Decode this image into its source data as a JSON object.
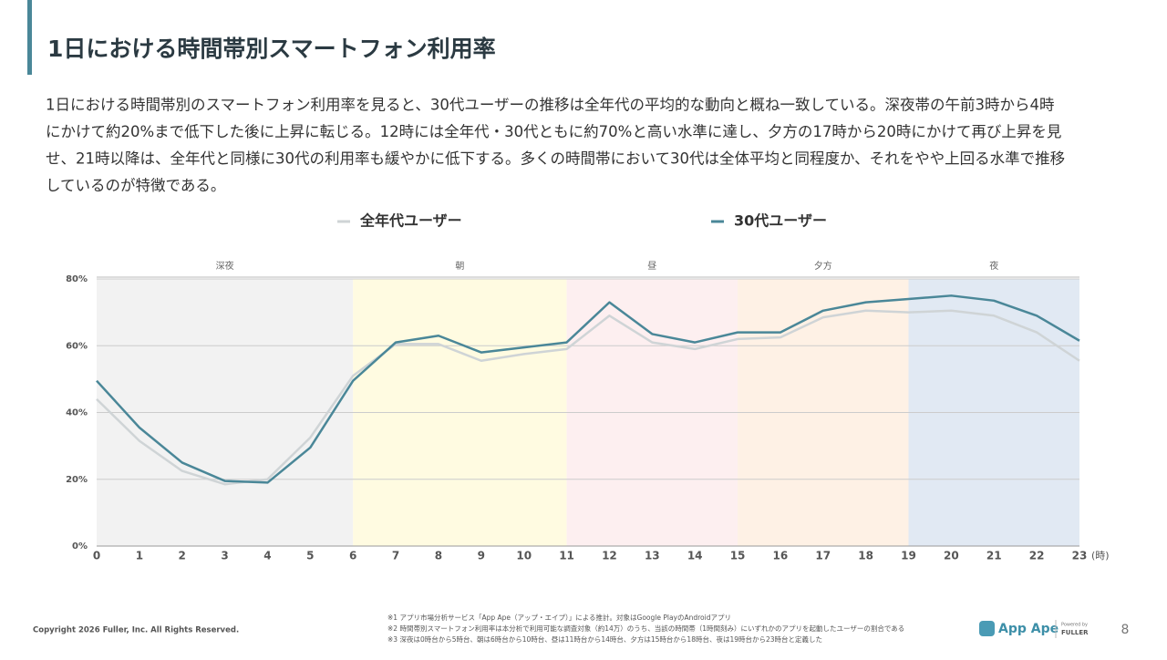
{
  "header": {
    "title": "1日における時間帯別スマートフォン利用率"
  },
  "body": {
    "paragraph": [
      "1日における時間帯別のスマートフォン利用率を見ると、30代ユーザーの推移は全年代の平均的な動向と概ね一致している。深夜帯の午前3時から4時",
      "にかけて約20%まで低下した後に上昇に転じる。12時には全年代・30代ともに約70%と高い水準に達し、夕方の17時から20時にかけて再び上昇を見",
      "せ、21時以降は、全年代と同様に30代の利用率も緩やかに低下する。多くの時間帯において30代は全体平均と同程度か、それをやや上回る水準で推移",
      "しているのが特徴である。"
    ]
  },
  "chart_data": {
    "type": "line",
    "x": [
      0,
      1,
      2,
      3,
      4,
      5,
      6,
      7,
      8,
      9,
      10,
      11,
      12,
      13,
      14,
      15,
      16,
      17,
      18,
      19,
      20,
      21,
      22,
      23
    ],
    "xlim": [
      0,
      23
    ],
    "xlabel": "(時)",
    "ylim": [
      0,
      80
    ],
    "yticks": [
      {
        "value": 0,
        "label": "0%"
      },
      {
        "value": 20,
        "label": "20%"
      },
      {
        "value": 40,
        "label": "40%"
      },
      {
        "value": 60,
        "label": "60%"
      },
      {
        "value": 80,
        "label": "80%"
      }
    ],
    "grid": true,
    "periods": [
      {
        "label": "深夜",
        "start": 0,
        "end": 6,
        "color": "#f2f2f2"
      },
      {
        "label": "朝",
        "start": 6,
        "end": 11,
        "color": "#fffbe1"
      },
      {
        "label": "昼",
        "start": 11,
        "end": 15,
        "color": "#fdeff0"
      },
      {
        "label": "夕方",
        "start": 15,
        "end": 19,
        "color": "#fef1e5"
      },
      {
        "label": "夜",
        "start": 19,
        "end": 23,
        "color": "#e1e9f3"
      }
    ],
    "series": [
      {
        "name": "全年代ユーザー",
        "color": "#cfd4d6",
        "values": [
          44,
          31.5,
          22.5,
          18.5,
          20,
          32.5,
          51,
          60.5,
          60.5,
          55.5,
          57.5,
          59,
          69,
          61,
          59,
          62,
          62.5,
          68.5,
          70.5,
          70,
          70.5,
          69,
          64,
          55.5
        ]
      },
      {
        "name": "30代ユーザー",
        "color": "#4a8798",
        "values": [
          49.5,
          35.5,
          25,
          19.5,
          19,
          29.5,
          49.5,
          61,
          63,
          58,
          59.5,
          61,
          73,
          63.5,
          61,
          64,
          64,
          70.5,
          73,
          74,
          75,
          73.5,
          69,
          61.5
        ]
      }
    ]
  },
  "footer": {
    "copyright": "Copyright 2026 Fuller, Inc. All Rights Reserved.",
    "notes": [
      "※1 アプリ市場分析サービス「App Ape（アップ・エイプ）」による推計。対象はGoogle PlayのAndroidアプリ",
      "※2 時間帯別スマートフォン利用率は本分析で利用可能な調査対象（約14万）のうち、当該の時間帯（1時間刻み）にいずれかのアプリを起動したユーザーの割合である",
      "※3 深夜は0時台から5時台、朝は6時台から10時台、昼は11時台から14時台、夕方は15時台から18時台、夜は19時台から23時台と定義した"
    ],
    "logo": "App Ape",
    "powered": "Powered by",
    "company": "FULLER",
    "page": "8"
  }
}
